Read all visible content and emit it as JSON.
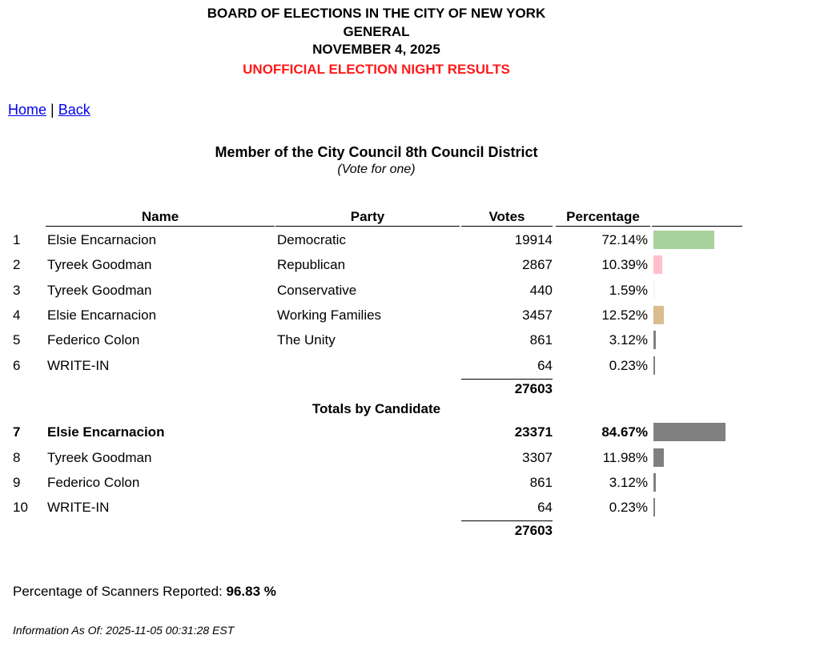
{
  "header": {
    "line1": "BOARD OF ELECTIONS IN THE CITY OF NEW YORK",
    "line2": "GENERAL",
    "line3": "NOVEMBER 4, 2025",
    "line4": "UNOFFICIAL ELECTION NIGHT RESULTS"
  },
  "nav": {
    "home": "Home",
    "separator": "|",
    "back": "Back"
  },
  "contest": {
    "title": "Member of the City Council 8th Council District",
    "subtitle": "(Vote for one)"
  },
  "table": {
    "columns": [
      "Name",
      "Party",
      "Votes",
      "Percentage"
    ],
    "party_rows": [
      {
        "num": "1",
        "name": "Elsie Encarnacion",
        "party": "Democratic",
        "votes": "19914",
        "pct": "72.14%",
        "pct_value": 72.14,
        "color": "#a8d29c"
      },
      {
        "num": "2",
        "name": "Tyreek Goodman",
        "party": "Republican",
        "votes": "2867",
        "pct": "10.39%",
        "pct_value": 10.39,
        "color": "#ffc0cb"
      },
      {
        "num": "3",
        "name": "Tyreek Goodman",
        "party": "Conservative",
        "votes": "440",
        "pct": "1.59%",
        "pct_value": 1.59,
        "color": "#f4f4f4"
      },
      {
        "num": "4",
        "name": "Elsie Encarnacion",
        "party": "Working Families",
        "votes": "3457",
        "pct": "12.52%",
        "pct_value": 12.52,
        "color": "#d9bd8f"
      },
      {
        "num": "5",
        "name": "Federico Colon",
        "party": "The Unity",
        "votes": "861",
        "pct": "3.12%",
        "pct_value": 3.12,
        "color": "#808080"
      },
      {
        "num": "6",
        "name": "WRITE-IN",
        "party": "",
        "votes": "64",
        "pct": "0.23%",
        "pct_value": 0.23,
        "color": "#808080"
      }
    ],
    "party_total": "27603",
    "totals_heading": "Totals by Candidate",
    "candidate_rows": [
      {
        "num": "7",
        "name": "Elsie Encarnacion",
        "votes": "23371",
        "pct": "84.67%",
        "pct_value": 84.67,
        "color": "#808080",
        "bold": true
      },
      {
        "num": "8",
        "name": "Tyreek Goodman",
        "votes": "3307",
        "pct": "11.98%",
        "pct_value": 11.98,
        "color": "#808080",
        "bold": false
      },
      {
        "num": "9",
        "name": "Federico Colon",
        "votes": "861",
        "pct": "3.12%",
        "pct_value": 3.12,
        "color": "#808080",
        "bold": false
      },
      {
        "num": "10",
        "name": "WRITE-IN",
        "votes": "64",
        "pct": "0.23%",
        "pct_value": 0.23,
        "color": "#808080",
        "bold": false
      }
    ],
    "candidate_total": "27603"
  },
  "footer": {
    "scanners_label": "Percentage of Scanners Reported:",
    "scanners_value": "96.83 %",
    "info": "Information As Of: 2025-11-05 00:31:28 EST"
  }
}
